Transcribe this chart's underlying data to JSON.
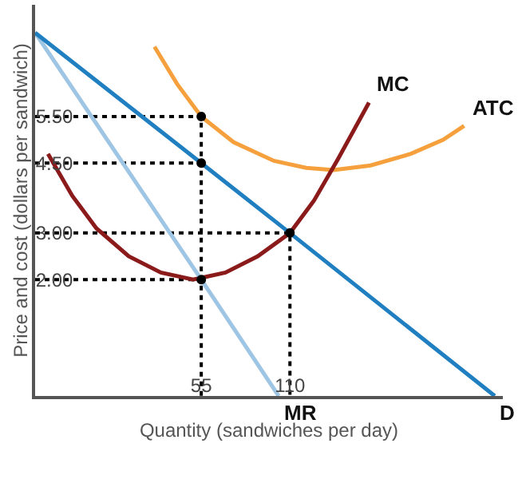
{
  "chart_data": {
    "type": "line",
    "xlabel": "Quantity (sandwiches per day)",
    "ylabel": "Price and cost (dollars per sandwich)",
    "xlim": [
      -48,
      242
    ],
    "ylim": [
      -0.5,
      7.9
    ],
    "xticks": [
      55,
      110
    ],
    "yticks": [
      {
        "value": 2,
        "label": "2.00"
      },
      {
        "value": 3,
        "label": "3.00"
      },
      {
        "value": 4.5,
        "label": "4.50"
      },
      {
        "value": 5.5,
        "label": "5.50"
      }
    ],
    "legend": false,
    "series": [
      {
        "line_style": "dotted",
        "color": "#000000",
        "x": [
          -48,
          55,
          55
        ],
        "values": [
          5.5,
          5.5,
          -0.5
        ]
      },
      {
        "line_style": "dotted",
        "color": "#000000",
        "x": [
          -48,
          55
        ],
        "values": [
          4.5,
          4.5
        ]
      },
      {
        "line_style": "dotted",
        "color": "#000000",
        "x": [
          -48,
          110,
          110
        ],
        "values": [
          3.0,
          3.0,
          -0.5
        ]
      },
      {
        "line_style": "dotted",
        "color": "#000000",
        "x": [
          -48,
          55
        ],
        "values": [
          2.0,
          2.0
        ]
      },
      {
        "name": "ATC",
        "color": "#f5a03c",
        "x": [
          26,
          40,
          55,
          75,
          100,
          120,
          137,
          160,
          185,
          205,
          218
        ],
        "values": [
          7.0,
          6.2,
          5.5,
          4.95,
          4.55,
          4.4,
          4.35,
          4.45,
          4.7,
          5.0,
          5.3
        ]
      },
      {
        "name": "MC",
        "color": "#8b1a1a",
        "x": [
          -40,
          -25,
          -10,
          10,
          30,
          50,
          70,
          90,
          110,
          125,
          140,
          159
        ],
        "values": [
          4.7,
          3.8,
          3.1,
          2.5,
          2.15,
          2.0,
          2.15,
          2.5,
          3.0,
          3.7,
          4.6,
          5.8
        ]
      },
      {
        "name": "MR",
        "color": "#9ec5e3",
        "x": [
          -48,
          55,
          103
        ],
        "values": [
          7.3,
          2.0,
          -0.5
        ]
      },
      {
        "name": "D",
        "color": "#1f7fc0",
        "x": [
          -48,
          55,
          110,
          237
        ],
        "values": [
          7.3,
          4.5,
          3.0,
          -0.5
        ]
      },
      {
        "type": "scatter",
        "color": "#000000",
        "x": [
          55,
          55,
          55,
          110
        ],
        "values": [
          5.5,
          4.5,
          2.0,
          3.0
        ]
      }
    ]
  }
}
